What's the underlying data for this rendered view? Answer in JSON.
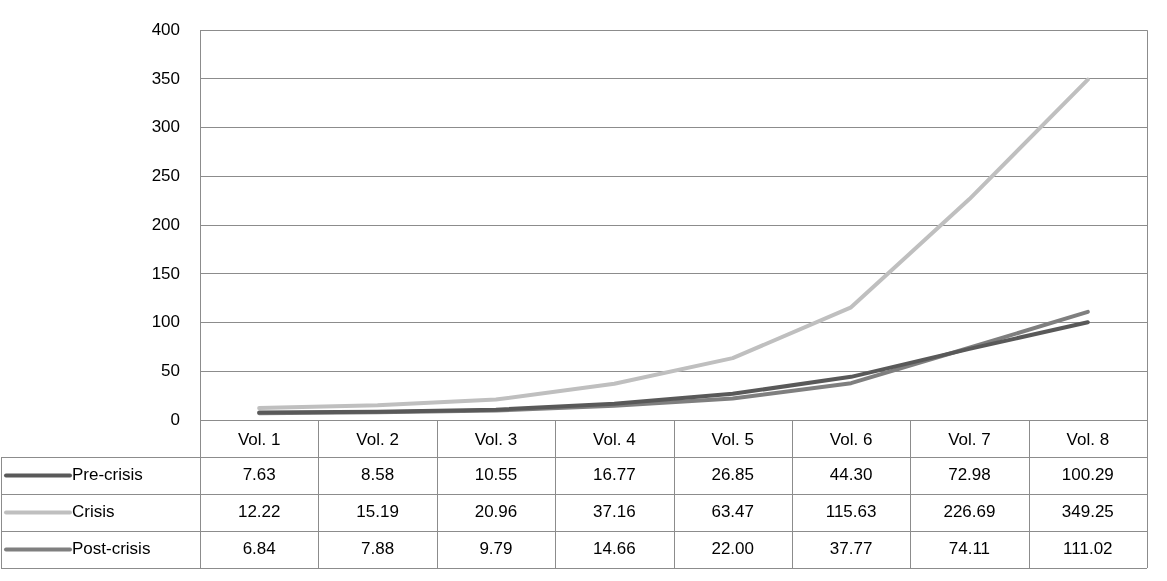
{
  "chart_data": {
    "type": "line",
    "categories": [
      "Vol. 1",
      "Vol. 2",
      "Vol. 3",
      "Vol. 4",
      "Vol. 5",
      "Vol. 6",
      "Vol. 7",
      "Vol. 8"
    ],
    "series": [
      {
        "name": "Pre-crisis",
        "color": "#595959",
        "values": [
          7.63,
          8.58,
          10.55,
          16.77,
          26.85,
          44.3,
          72.98,
          100.29
        ],
        "value_labels": [
          "7.63",
          "8.58",
          "10.55",
          "16.77",
          "26.85",
          "44.30",
          "72.98",
          "100.29"
        ]
      },
      {
        "name": "Crisis",
        "color": "#bfbfbf",
        "values": [
          12.22,
          15.19,
          20.96,
          37.16,
          63.47,
          115.63,
          226.69,
          349.25
        ],
        "value_labels": [
          "12.22",
          "15.19",
          "20.96",
          "37.16",
          "63.47",
          "115.63",
          "226.69",
          "349.25"
        ]
      },
      {
        "name": "Post-crisis",
        "color": "#7f7f7f",
        "values": [
          6.84,
          7.88,
          9.79,
          14.66,
          22.0,
          37.77,
          74.11,
          111.02
        ],
        "value_labels": [
          "6.84",
          "7.88",
          "9.79",
          "14.66",
          "22.00",
          "37.77",
          "74.11",
          "111.02"
        ]
      }
    ],
    "ylim": [
      0,
      400
    ],
    "yticks": [
      0,
      50,
      100,
      150,
      200,
      250,
      300,
      350,
      400
    ],
    "grid": "y",
    "legend": "bottom",
    "marker": "none",
    "line_style": "solid"
  }
}
